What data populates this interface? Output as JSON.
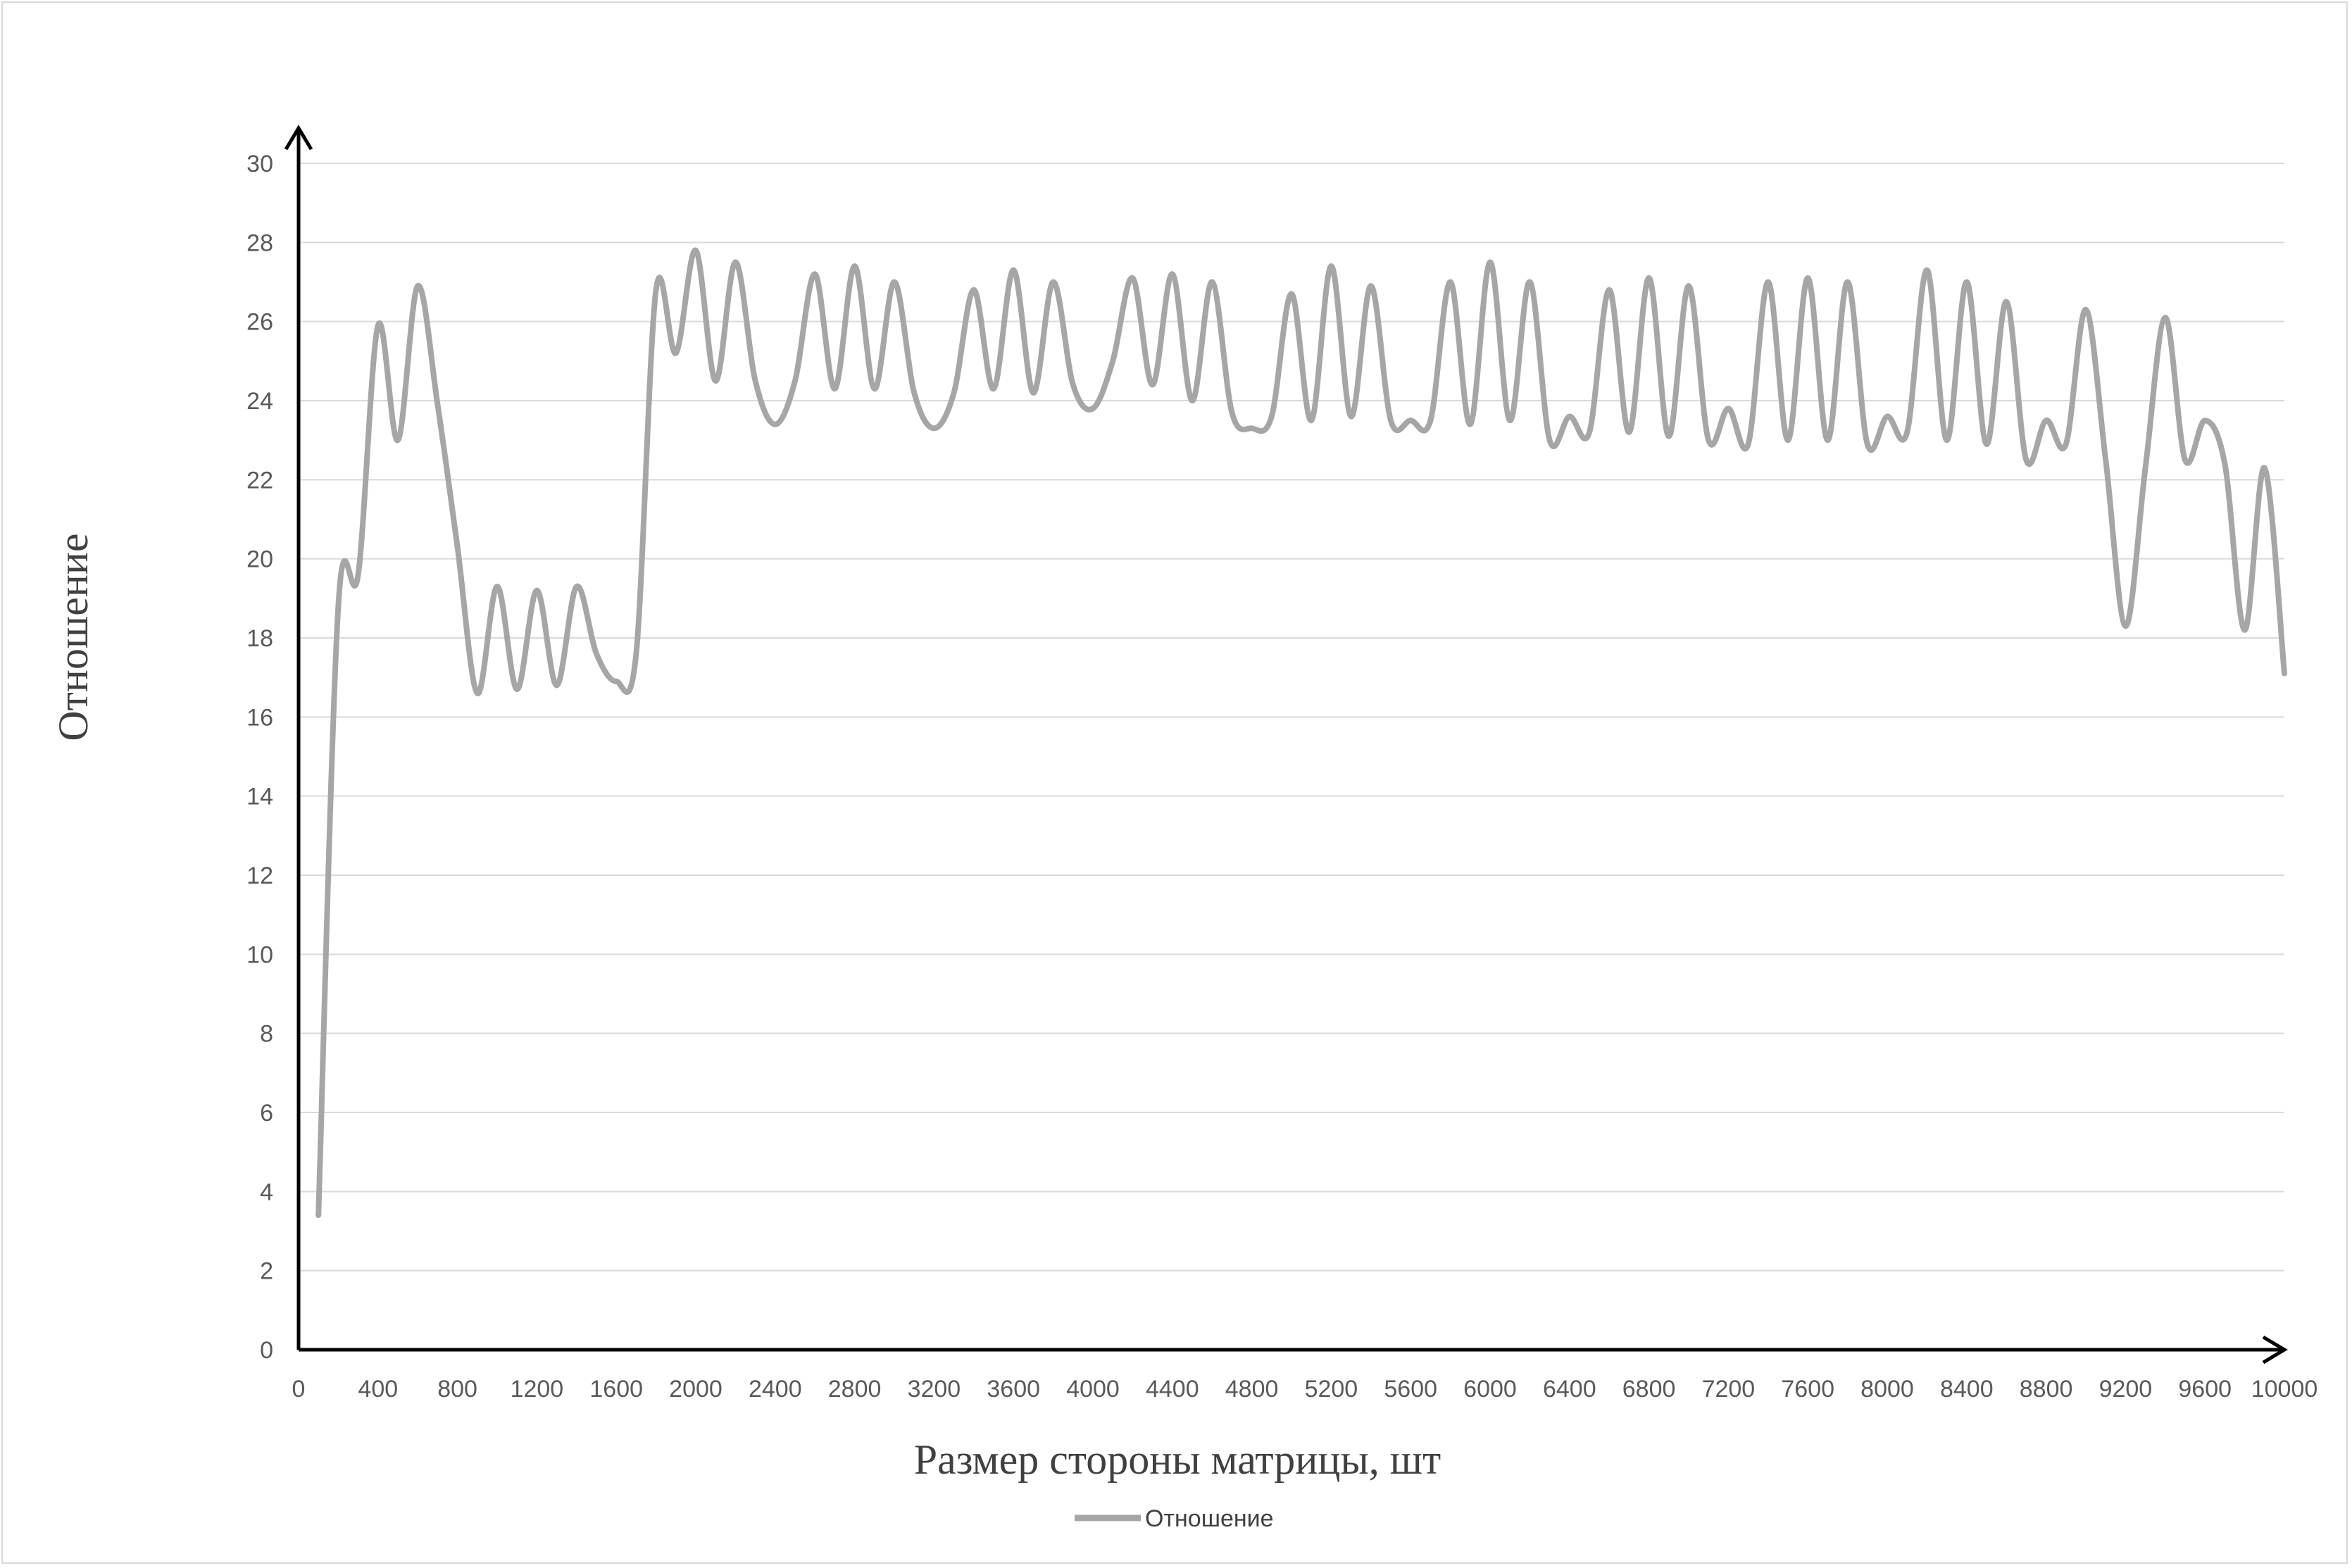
{
  "chart_data": {
    "type": "line",
    "xlabel": "Размер стороны матрицы, шт",
    "ylabel": "Отношение",
    "xlim": [
      0,
      10000
    ],
    "ylim": [
      0,
      30
    ],
    "x_ticks": [
      "0",
      "400",
      "800",
      "1200",
      "1600",
      "2000",
      "2400",
      "2800",
      "3200",
      "3600",
      "4000",
      "4400",
      "4800",
      "5200",
      "5600",
      "6000",
      "6400",
      "6800",
      "7200",
      "7600",
      "8000",
      "8400",
      "8800",
      "9200",
      "9600",
      "10000"
    ],
    "y_ticks": [
      "0",
      "2",
      "4",
      "6",
      "8",
      "10",
      "12",
      "14",
      "16",
      "18",
      "20",
      "22",
      "24",
      "26",
      "28",
      "30"
    ],
    "grid": "horizontal",
    "legend": "bottom",
    "line_color": "#a6a6a6",
    "series": [
      {
        "name": "Отношение",
        "x": [
          100,
          200,
          300,
          400,
          500,
          600,
          700,
          800,
          900,
          1000,
          1100,
          1200,
          1300,
          1400,
          1500,
          1600,
          1700,
          1800,
          1900,
          2000,
          2100,
          2200,
          2300,
          2400,
          2500,
          2600,
          2700,
          2800,
          2900,
          3000,
          3100,
          3200,
          3300,
          3400,
          3500,
          3600,
          3700,
          3800,
          3900,
          4000,
          4100,
          4200,
          4300,
          4400,
          4500,
          4600,
          4700,
          4800,
          4900,
          5000,
          5100,
          5200,
          5300,
          5400,
          5500,
          5600,
          5700,
          5800,
          5900,
          6000,
          6100,
          6200,
          6300,
          6400,
          6500,
          6600,
          6700,
          6800,
          6900,
          7000,
          7100,
          7200,
          7300,
          7400,
          7500,
          7600,
          7700,
          7800,
          7900,
          8000,
          8100,
          8200,
          8300,
          8400,
          8500,
          8600,
          8700,
          8800,
          8900,
          9000,
          9100,
          9200,
          9300,
          9400,
          9500,
          9600,
          9700,
          9800,
          9900,
          10000
        ],
        "y": [
          3.4,
          18.8,
          19.6,
          25.9,
          23.0,
          26.9,
          23.9,
          20.3,
          16.6,
          19.3,
          16.7,
          19.2,
          16.8,
          19.3,
          17.6,
          16.9,
          17.6,
          26.8,
          25.2,
          27.8,
          24.5,
          27.5,
          24.5,
          23.4,
          24.5,
          27.2,
          24.3,
          27.4,
          24.3,
          27.0,
          24.2,
          23.3,
          24.2,
          26.8,
          24.3,
          27.3,
          24.2,
          27.0,
          24.4,
          23.8,
          25.0,
          27.1,
          24.4,
          27.2,
          24.0,
          27.0,
          23.7,
          23.3,
          23.6,
          26.7,
          23.5,
          27.4,
          23.6,
          26.9,
          23.5,
          23.5,
          23.5,
          27.0,
          23.4,
          27.5,
          23.5,
          27.0,
          23.0,
          23.6,
          23.2,
          26.8,
          23.2,
          27.1,
          23.1,
          26.9,
          23.0,
          23.8,
          22.9,
          27.0,
          23.0,
          27.1,
          23.0,
          27.0,
          22.9,
          23.6,
          23.2,
          27.3,
          23.0,
          27.0,
          22.9,
          26.5,
          22.5,
          23.5,
          22.9,
          26.3,
          22.5,
          18.3,
          22.3,
          26.1,
          22.5,
          23.5,
          22.4,
          18.2,
          22.3,
          17.1
        ]
      }
    ]
  }
}
